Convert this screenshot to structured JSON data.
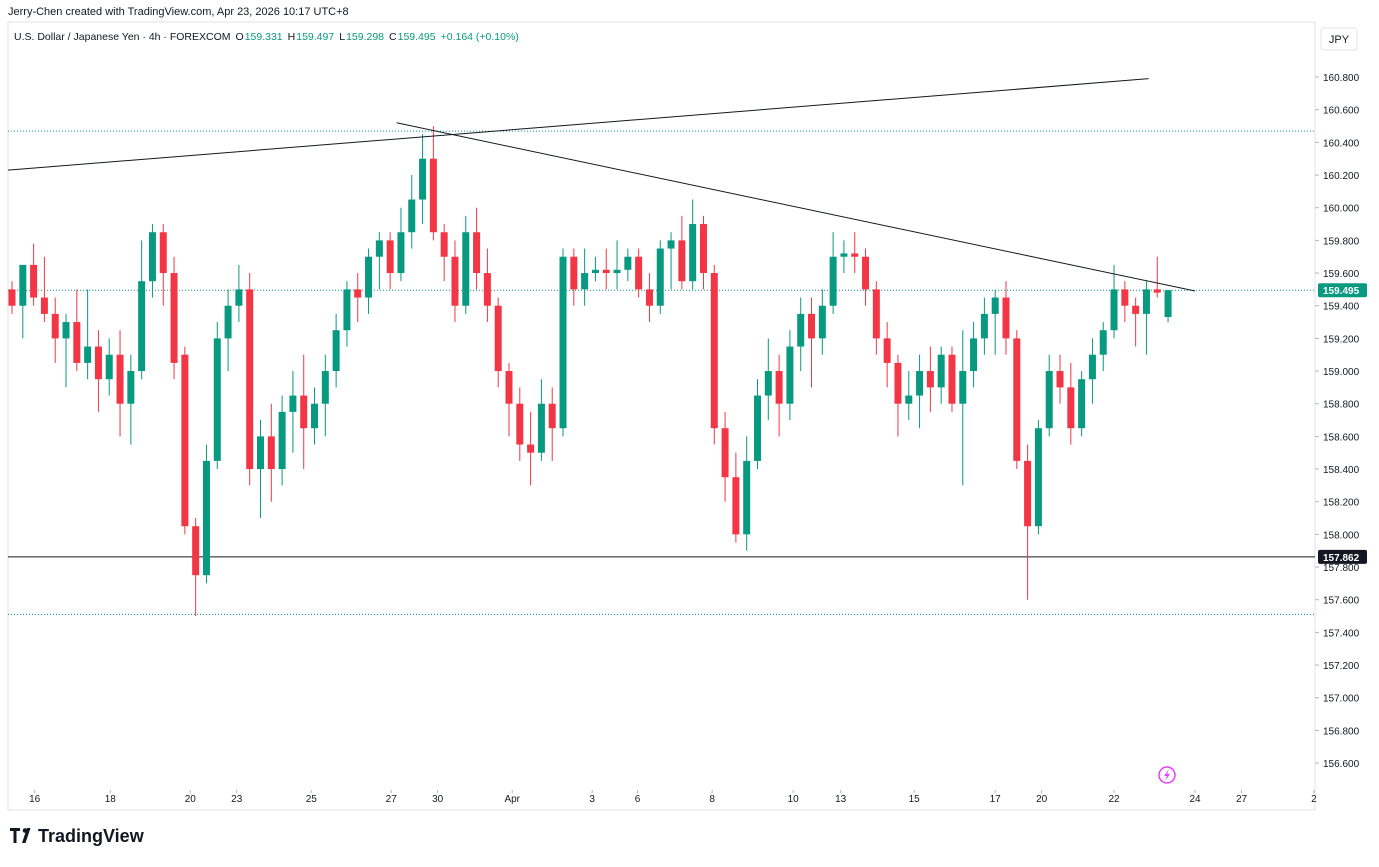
{
  "header": {
    "credit": "Jerry-Chen created with TradingView.com, Apr 23, 2026 10:17 UTC+8",
    "currency": "JPY",
    "brand": "TradingView"
  },
  "chart_data": {
    "type": "candlestick",
    "legend": {
      "symbol": "U.S. Dollar / Japanese Yen · 4h · FOREXCOM",
      "o_label": "O",
      "open": 159.331,
      "h_label": "H",
      "high": 159.497,
      "l_label": "L",
      "low": 159.298,
      "c_label": "C",
      "close": 159.495,
      "change": "+0.164 (+0.10%)"
    },
    "up_color": "#089981",
    "down_color": "#f23645",
    "open": [
      159.5,
      159.4,
      159.65,
      159.45,
      159.35,
      159.2,
      159.3,
      159.05,
      159.15,
      158.95,
      159.1,
      158.8,
      159.0,
      159.55,
      159.85,
      159.6,
      159.1,
      158.05,
      157.75,
      158.45,
      159.2,
      159.4,
      159.5,
      158.4,
      158.6,
      158.4,
      158.75,
      158.85,
      158.65,
      158.8,
      159.0,
      159.25,
      159.5,
      159.45,
      159.7,
      159.8,
      159.6,
      159.85,
      160.05,
      160.3,
      159.85,
      159.7,
      159.4,
      159.85,
      159.6,
      159.4,
      159.0,
      158.8,
      158.55,
      158.5,
      158.8,
      158.65,
      159.7,
      159.5,
      159.6,
      159.62,
      159.6,
      159.62,
      159.7,
      159.5,
      159.4,
      159.75,
      159.8,
      159.55,
      159.9,
      159.6,
      158.65,
      158.35,
      158.0,
      158.45,
      158.85,
      159.0,
      158.8,
      159.15,
      159.35,
      159.2,
      159.4,
      159.7,
      159.72,
      159.7,
      159.5,
      159.2,
      159.05,
      158.8,
      158.85,
      159.0,
      158.9,
      159.1,
      158.8,
      159.0,
      159.2,
      159.35,
      159.45,
      159.2,
      158.45,
      158.05,
      158.65,
      159.0,
      158.9,
      158.65,
      158.95,
      159.1,
      159.25,
      159.5,
      159.4,
      159.35,
      159.5,
      159.331
    ],
    "high": [
      159.55,
      159.65,
      159.78,
      159.7,
      159.45,
      159.35,
      159.5,
      159.5,
      159.25,
      159.2,
      159.25,
      159.1,
      159.8,
      159.9,
      159.9,
      159.7,
      159.15,
      158.1,
      158.55,
      159.3,
      159.5,
      159.65,
      159.6,
      158.7,
      158.8,
      158.85,
      159.0,
      159.1,
      158.9,
      159.1,
      159.35,
      159.55,
      159.6,
      159.75,
      159.85,
      159.85,
      160.0,
      160.2,
      160.45,
      160.5,
      159.9,
      159.8,
      159.95,
      160.0,
      159.75,
      159.45,
      159.05,
      158.9,
      158.75,
      158.95,
      158.9,
      159.75,
      159.75,
      159.75,
      159.7,
      159.75,
      159.8,
      159.75,
      159.75,
      159.6,
      159.8,
      159.85,
      159.95,
      160.05,
      159.95,
      159.65,
      158.75,
      158.5,
      158.6,
      158.95,
      159.2,
      159.1,
      159.25,
      159.45,
      159.45,
      159.5,
      159.85,
      159.8,
      159.85,
      159.75,
      159.55,
      159.3,
      159.1,
      159.0,
      159.1,
      159.15,
      159.15,
      159.15,
      159.25,
      159.3,
      159.45,
      159.5,
      159.55,
      159.25,
      158.55,
      158.7,
      159.1,
      159.1,
      159.05,
      159.0,
      159.2,
      159.3,
      159.65,
      159.55,
      159.45,
      159.55,
      159.7,
      159.497
    ],
    "low": [
      159.35,
      159.2,
      159.4,
      159.3,
      159.05,
      158.9,
      159.0,
      158.95,
      158.75,
      158.85,
      158.6,
      158.55,
      158.95,
      159.45,
      159.4,
      158.95,
      158.0,
      157.5,
      157.7,
      158.4,
      159.0,
      159.3,
      158.3,
      158.1,
      158.2,
      158.3,
      158.5,
      158.4,
      158.55,
      158.6,
      158.9,
      159.15,
      159.3,
      159.35,
      159.5,
      159.5,
      159.55,
      159.75,
      159.9,
      159.8,
      159.55,
      159.3,
      159.35,
      159.5,
      159.3,
      158.9,
      158.6,
      158.45,
      158.3,
      158.45,
      158.45,
      158.6,
      159.4,
      159.4,
      159.55,
      159.5,
      159.5,
      159.55,
      159.45,
      159.3,
      159.35,
      159.5,
      159.5,
      159.5,
      159.5,
      158.55,
      158.2,
      157.95,
      157.9,
      158.4,
      158.7,
      158.6,
      158.7,
      159.0,
      158.9,
      159.1,
      159.35,
      159.6,
      159.6,
      159.4,
      159.1,
      158.9,
      158.6,
      158.7,
      158.65,
      158.75,
      158.8,
      158.75,
      158.3,
      158.9,
      159.1,
      159.1,
      159.1,
      158.4,
      157.6,
      158.0,
      158.6,
      158.8,
      158.55,
      158.6,
      158.8,
      159.0,
      159.2,
      159.3,
      159.15,
      159.1,
      159.45,
      159.298
    ],
    "close": [
      159.4,
      159.65,
      159.45,
      159.35,
      159.2,
      159.3,
      159.05,
      159.15,
      158.95,
      159.1,
      158.8,
      159.0,
      159.55,
      159.85,
      159.6,
      159.05,
      158.05,
      157.75,
      158.45,
      159.2,
      159.4,
      159.5,
      158.4,
      158.6,
      158.4,
      158.75,
      158.85,
      158.65,
      158.8,
      159.0,
      159.25,
      159.5,
      159.45,
      159.7,
      159.8,
      159.6,
      159.85,
      160.05,
      160.3,
      159.85,
      159.7,
      159.4,
      159.85,
      159.6,
      159.4,
      159.0,
      158.8,
      158.55,
      158.5,
      158.8,
      158.65,
      159.7,
      159.5,
      159.6,
      159.62,
      159.6,
      159.62,
      159.7,
      159.5,
      159.4,
      159.75,
      159.8,
      159.55,
      159.9,
      159.6,
      158.65,
      158.35,
      158.0,
      158.45,
      158.85,
      159.0,
      158.8,
      159.15,
      159.35,
      159.2,
      159.4,
      159.7,
      159.72,
      159.7,
      159.5,
      159.2,
      159.05,
      158.8,
      158.85,
      159.0,
      158.9,
      159.1,
      158.8,
      159.0,
      159.2,
      159.35,
      159.45,
      159.2,
      158.45,
      158.05,
      158.65,
      159.0,
      158.9,
      158.65,
      158.95,
      159.1,
      159.25,
      159.5,
      159.4,
      159.35,
      159.5,
      159.48,
      159.495
    ],
    "xlim": [
      -0.37,
      120.6
    ],
    "xticks": [
      {
        "value": 2.1,
        "label": "16"
      },
      {
        "value": 9.1,
        "label": "18"
      },
      {
        "value": 16.5,
        "label": "20"
      },
      {
        "value": 20.8,
        "label": "23"
      },
      {
        "value": 27.7,
        "label": "25"
      },
      {
        "value": 35.1,
        "label": "27"
      },
      {
        "value": 39.4,
        "label": "30"
      },
      {
        "value": 46.3,
        "label": "Apr"
      },
      {
        "value": 53.7,
        "label": "3"
      },
      {
        "value": 57.9,
        "label": "6"
      },
      {
        "value": 64.8,
        "label": "8"
      },
      {
        "value": 72.3,
        "label": "10"
      },
      {
        "value": 76.7,
        "label": "13"
      },
      {
        "value": 83.5,
        "label": "15"
      },
      {
        "value": 91.0,
        "label": "17"
      },
      {
        "value": 95.3,
        "label": "20"
      },
      {
        "value": 102.0,
        "label": "22"
      },
      {
        "value": 109.5,
        "label": "24"
      },
      {
        "value": 113.8,
        "label": "27"
      },
      {
        "value": 120.5,
        "label": "2"
      }
    ],
    "ylim": [
      156.435,
      161.137
    ],
    "yticks": [
      {
        "value": 156.6,
        "label": "156.600"
      },
      {
        "value": 156.8,
        "label": "156.800"
      },
      {
        "value": 157.0,
        "label": "157.000"
      },
      {
        "value": 157.2,
        "label": "157.200"
      },
      {
        "value": 157.4,
        "label": "157.400"
      },
      {
        "value": 157.6,
        "label": "157.600"
      },
      {
        "value": 157.8,
        "label": "157.800"
      },
      {
        "value": 158.0,
        "label": "158.000"
      },
      {
        "value": 158.2,
        "label": "158.200"
      },
      {
        "value": 158.4,
        "label": "158.400"
      },
      {
        "value": 158.6,
        "label": "158.600"
      },
      {
        "value": 158.8,
        "label": "158.800"
      },
      {
        "value": 159.0,
        "label": "159.000"
      },
      {
        "value": 159.2,
        "label": "159.200"
      },
      {
        "value": 159.4,
        "label": "159.400"
      },
      {
        "value": 159.6,
        "label": "159.600"
      },
      {
        "value": 159.8,
        "label": "159.800"
      },
      {
        "value": 160.0,
        "label": "160.000"
      },
      {
        "value": 160.2,
        "label": "160.200"
      },
      {
        "value": 160.4,
        "label": "160.400"
      },
      {
        "value": 160.6,
        "label": "160.600"
      },
      {
        "value": 160.8,
        "label": "160.800"
      }
    ],
    "dotted_levels": [
      160.469,
      159.495,
      157.51
    ],
    "horizontal_line": 157.862,
    "price_badges": [
      {
        "value": 159.495,
        "color": "#089981"
      },
      {
        "value": 157.862,
        "color": "#131722"
      }
    ],
    "trend_lines": [
      {
        "x": [
          -0.37,
          105.2
        ],
        "y": [
          160.23,
          160.79
        ]
      },
      {
        "x": [
          35.6,
          109.5
        ],
        "y": [
          160.52,
          159.49
        ]
      }
    ]
  }
}
